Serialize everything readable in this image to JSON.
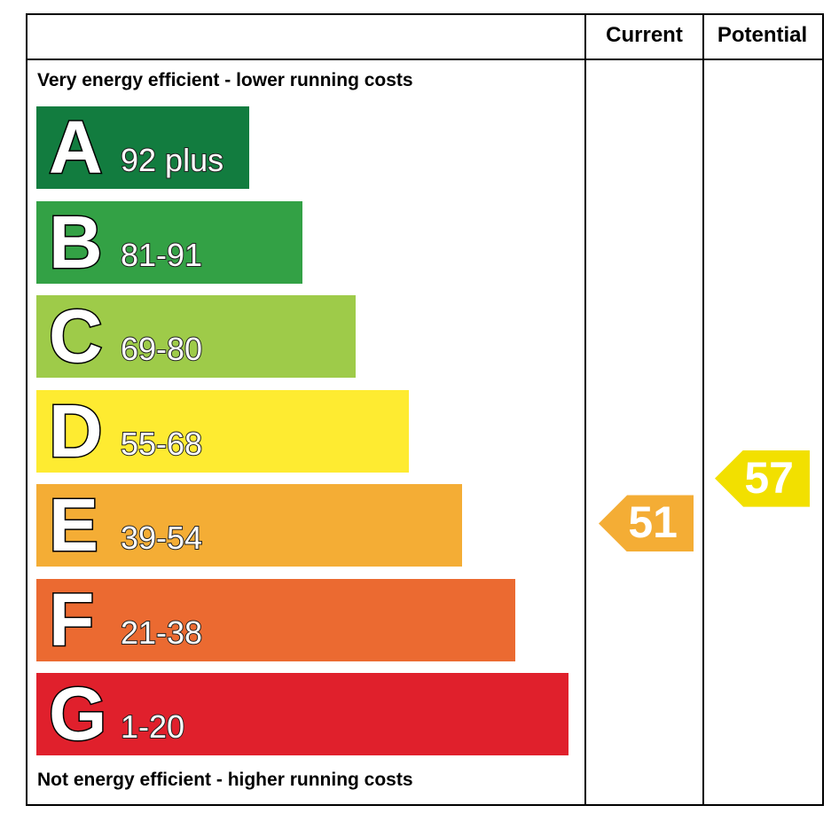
{
  "chart_data": {
    "type": "bar",
    "headers": {
      "current": "Current",
      "potential": "Potential"
    },
    "top_note": "Very energy efficient - lower running costs",
    "bottom_note": "Not energy efficient - higher running costs",
    "bands": [
      {
        "letter": "A",
        "range": "92 plus",
        "color": "#127c3f"
      },
      {
        "letter": "B",
        "range": "81-91",
        "color": "#33a145"
      },
      {
        "letter": "C",
        "range": "69-80",
        "color": "#9ecb49"
      },
      {
        "letter": "D",
        "range": "55-68",
        "color": "#feeb31"
      },
      {
        "letter": "E",
        "range": "39-54",
        "color": "#f4ad35"
      },
      {
        "letter": "F",
        "range": "21-38",
        "color": "#eb6a31"
      },
      {
        "letter": "G",
        "range": "1-20",
        "color": "#e0202c"
      }
    ],
    "current": {
      "value": 51,
      "label": "51",
      "color": "#f4ad35"
    },
    "potential": {
      "value": 57,
      "label": "57",
      "color": "#f2e000"
    }
  }
}
